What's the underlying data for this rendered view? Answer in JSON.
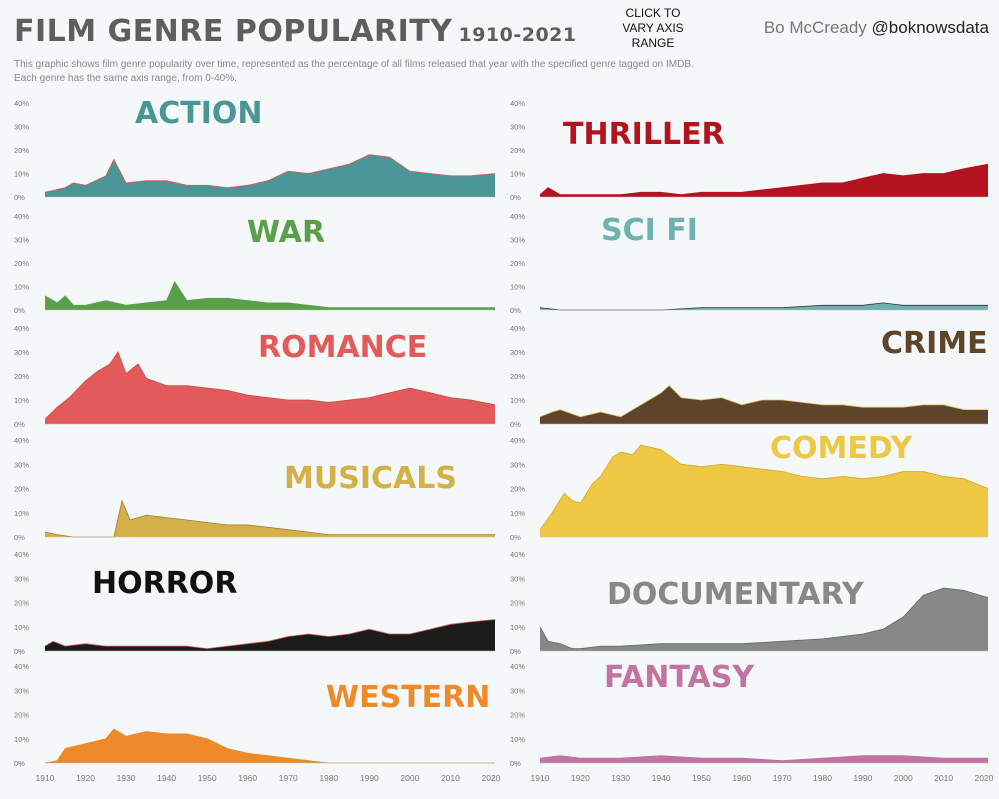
{
  "header": {
    "title": "FILM GENRE POPULARITY",
    "years": "1910-2021",
    "subtitle_line1": "This graphic shows film genre popularity over time, represented as the percentage of all films released that year with the specified genre tagged on IMDB.",
    "subtitle_line2": "Each genre has the same axis range, from 0-40%.",
    "click_button": "CLICK TO VARY AXIS RANGE",
    "author": "Bo McCready",
    "handle": "@boknowsdata"
  },
  "chart_data": {
    "type": "area",
    "x_range": [
      1910,
      2021
    ],
    "ylim": [
      0,
      40
    ],
    "y_ticks": [
      "0%",
      "10%",
      "20%",
      "30%",
      "40%"
    ],
    "x_ticks": [
      "1910",
      "1920",
      "1930",
      "1940",
      "1950",
      "1960",
      "1970",
      "1980",
      "1990",
      "2000",
      "2010",
      "2020"
    ],
    "panels": [
      {
        "name": "ACTION",
        "color": "#4a9595",
        "line": "#e05a5a",
        "x": [
          1910,
          1915,
          1917,
          1920,
          1925,
          1927,
          1930,
          1935,
          1940,
          1945,
          1950,
          1955,
          1960,
          1965,
          1970,
          1975,
          1980,
          1985,
          1990,
          1995,
          2000,
          2005,
          2010,
          2015,
          2021
        ],
        "y": [
          2,
          4,
          6,
          5,
          9,
          16,
          6,
          7,
          7,
          5,
          5,
          4,
          5,
          7,
          11,
          10,
          12,
          14,
          18,
          17,
          11,
          10,
          9,
          9,
          10
        ]
      },
      {
        "name": "THRILLER",
        "color": "#b5121f",
        "line": "#b5121f",
        "x": [
          1910,
          1912,
          1915,
          1920,
          1925,
          1930,
          1935,
          1940,
          1945,
          1950,
          1955,
          1960,
          1965,
          1970,
          1975,
          1980,
          1985,
          1990,
          1995,
          2000,
          2005,
          2010,
          2015,
          2021
        ],
        "y": [
          1,
          4,
          1,
          1,
          1,
          1,
          2,
          2,
          1,
          2,
          2,
          2,
          3,
          4,
          5,
          6,
          6,
          8,
          10,
          9,
          10,
          10,
          12,
          14
        ]
      },
      {
        "name": "WAR",
        "color": "#5aa04a",
        "line": "#5aa04a",
        "x": [
          1910,
          1913,
          1915,
          1917,
          1920,
          1925,
          1930,
          1935,
          1940,
          1942,
          1945,
          1950,
          1955,
          1960,
          1965,
          1970,
          1975,
          1980,
          1990,
          2000,
          2010,
          2021
        ],
        "y": [
          6,
          3,
          6,
          2,
          2,
          4,
          2,
          3,
          4,
          12,
          4,
          5,
          5,
          4,
          3,
          3,
          2,
          1,
          1,
          1,
          1,
          1
        ]
      },
      {
        "name": "SCI FI",
        "color": "#6fb0b0",
        "line": "#333333",
        "x": [
          1910,
          1915,
          1920,
          1925,
          1930,
          1940,
          1950,
          1960,
          1970,
          1980,
          1990,
          1995,
          2000,
          2010,
          2021
        ],
        "y": [
          1,
          0,
          0,
          0,
          0,
          0,
          1,
          1,
          1,
          2,
          2,
          3,
          2,
          2,
          2
        ]
      },
      {
        "name": "ROMANCE",
        "color": "#e35a5a",
        "line": "#d04848",
        "x": [
          1910,
          1913,
          1916,
          1920,
          1923,
          1926,
          1928,
          1930,
          1933,
          1935,
          1940,
          1945,
          1950,
          1955,
          1960,
          1965,
          1970,
          1975,
          1980,
          1985,
          1990,
          1995,
          2000,
          2005,
          2010,
          2015,
          2021
        ],
        "y": [
          2,
          7,
          11,
          18,
          22,
          25,
          30,
          21,
          25,
          19,
          16,
          16,
          15,
          14,
          12,
          11,
          10,
          10,
          9,
          10,
          11,
          13,
          15,
          13,
          11,
          10,
          8
        ]
      },
      {
        "name": "CRIME",
        "color": "#5e4529",
        "line": "#e0c060",
        "x": [
          1910,
          1913,
          1915,
          1920,
          1925,
          1930,
          1935,
          1940,
          1942,
          1945,
          1950,
          1955,
          1960,
          1965,
          1970,
          1975,
          1980,
          1985,
          1990,
          1995,
          2000,
          2005,
          2010,
          2015,
          2021
        ],
        "y": [
          3,
          5,
          6,
          3,
          5,
          3,
          8,
          13,
          16,
          11,
          10,
          11,
          8,
          10,
          10,
          9,
          8,
          8,
          7,
          7,
          7,
          8,
          8,
          6,
          6
        ]
      },
      {
        "name": "MUSICALS",
        "color": "#d4b146",
        "line": "#aa7a3a",
        "x": [
          1910,
          1913,
          1917,
          1918,
          1927,
          1929,
          1931,
          1935,
          1940,
          1945,
          1950,
          1955,
          1960,
          1965,
          1970,
          1975,
          1980,
          1990,
          2000,
          2010,
          2021
        ],
        "y": [
          2,
          1,
          0,
          0,
          0,
          15,
          7,
          9,
          8,
          7,
          6,
          5,
          5,
          4,
          3,
          2,
          1,
          1,
          1,
          1,
          1
        ]
      },
      {
        "name": "COMEDY",
        "color": "#eec744",
        "line": "#d4a830",
        "x": [
          1910,
          1913,
          1916,
          1918,
          1920,
          1923,
          1925,
          1928,
          1930,
          1933,
          1935,
          1940,
          1945,
          1950,
          1955,
          1960,
          1965,
          1970,
          1975,
          1980,
          1985,
          1990,
          1995,
          2000,
          2005,
          2010,
          2015,
          2021
        ],
        "y": [
          3,
          10,
          18,
          15,
          14,
          22,
          25,
          33,
          35,
          34,
          38,
          36,
          30,
          29,
          30,
          29,
          28,
          27,
          25,
          24,
          25,
          24,
          25,
          27,
          27,
          25,
          24,
          20
        ]
      },
      {
        "name": "HORROR",
        "color": "#1b1b1b",
        "line": "#e05a5a",
        "x": [
          1910,
          1912,
          1915,
          1920,
          1925,
          1930,
          1935,
          1940,
          1945,
          1950,
          1955,
          1960,
          1965,
          1970,
          1975,
          1980,
          1985,
          1990,
          1995,
          2000,
          2005,
          2010,
          2015,
          2021
        ],
        "y": [
          2,
          4,
          2,
          3,
          2,
          2,
          2,
          2,
          2,
          1,
          2,
          3,
          4,
          6,
          7,
          6,
          7,
          9,
          7,
          7,
          9,
          11,
          12,
          13
        ]
      },
      {
        "name": "DOCUMENTARY",
        "color": "#888888",
        "line": "#666666",
        "x": [
          1910,
          1912,
          1915,
          1918,
          1920,
          1925,
          1930,
          1940,
          1950,
          1960,
          1970,
          1980,
          1990,
          1995,
          2000,
          2005,
          2010,
          2015,
          2021
        ],
        "y": [
          10,
          4,
          3,
          1,
          1,
          2,
          2,
          3,
          3,
          3,
          4,
          5,
          7,
          9,
          14,
          23,
          26,
          25,
          22
        ]
      },
      {
        "name": "WESTERN",
        "color": "#ef8a2a",
        "line": "#ef8a2a",
        "x": [
          1910,
          1913,
          1915,
          1920,
          1925,
          1927,
          1930,
          1935,
          1940,
          1945,
          1950,
          1955,
          1960,
          1965,
          1970,
          1975,
          1980,
          1990,
          2000,
          2010,
          2021
        ],
        "y": [
          0,
          1,
          6,
          8,
          10,
          14,
          11,
          13,
          12,
          12,
          10,
          6,
          4,
          3,
          2,
          1,
          0,
          0,
          0,
          0,
          0
        ]
      },
      {
        "name": "FANTASY",
        "color": "#c273a2",
        "line": "#c273a2",
        "x": [
          1910,
          1915,
          1920,
          1925,
          1930,
          1940,
          1950,
          1960,
          1970,
          1980,
          1990,
          2000,
          2010,
          2015,
          2021
        ],
        "y": [
          2,
          3,
          2,
          2,
          2,
          3,
          2,
          2,
          1,
          2,
          3,
          3,
          2,
          2,
          2
        ]
      }
    ]
  }
}
